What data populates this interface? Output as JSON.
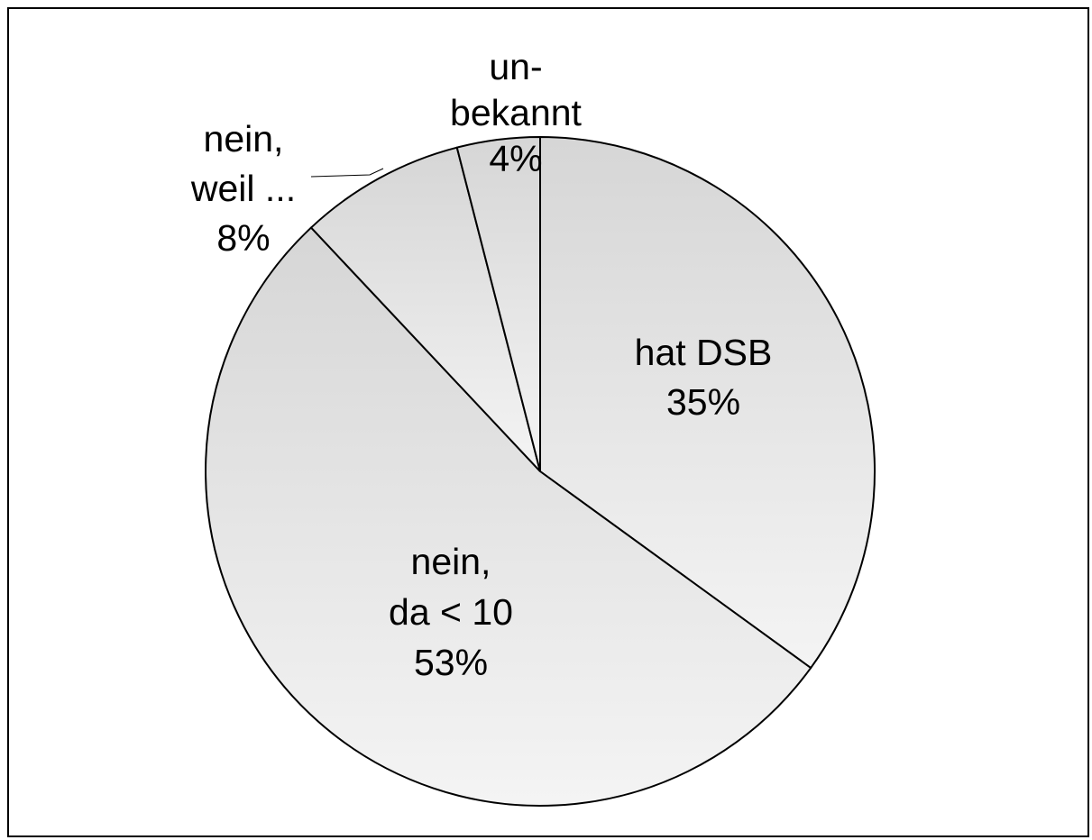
{
  "chart_data": {
    "type": "pie",
    "title": "",
    "start_angle_deg": 0,
    "direction": "clockwise",
    "slices": [
      {
        "label_lines": [
          "hat DSB",
          "35%"
        ],
        "value": 35
      },
      {
        "label_lines": [
          "nein,",
          "da < 10",
          "53%"
        ],
        "value": 53
      },
      {
        "label_lines": [
          "nein,",
          "weil ...",
          "8%"
        ],
        "value": 8
      },
      {
        "label_lines": [
          "un-",
          "bekannt",
          "4%"
        ],
        "value": 4
      }
    ],
    "colors": {
      "fill_light": "#f4f4f4",
      "fill_dark": "#d6d6d6",
      "stroke": "#000000"
    }
  }
}
